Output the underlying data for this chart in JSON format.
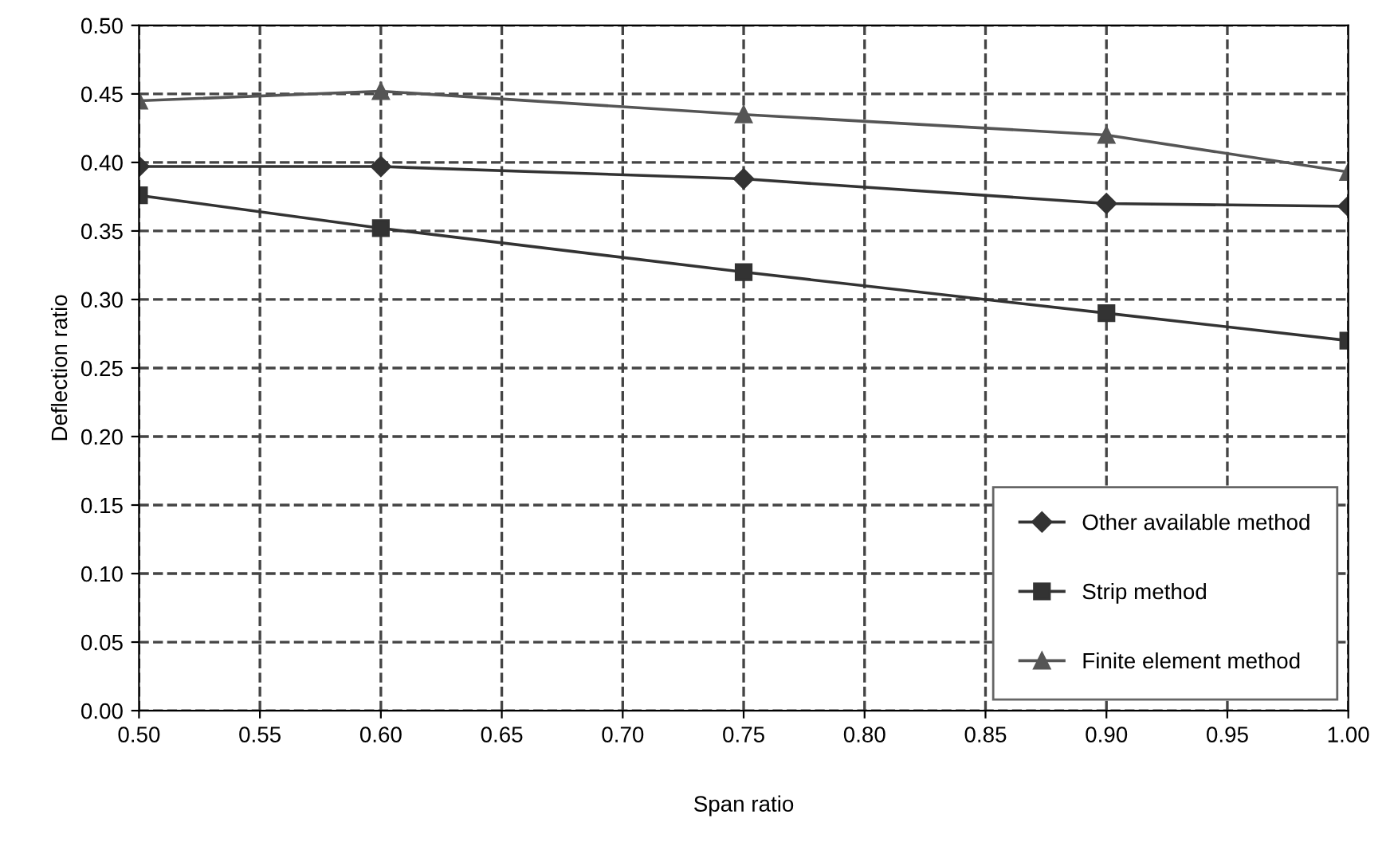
{
  "chart_data": {
    "type": "line",
    "xlabel": "Span ratio",
    "ylabel": "Deflection ratio",
    "x": [
      0.5,
      0.6,
      0.75,
      0.9,
      1.0
    ],
    "series": [
      {
        "name": "Other available method",
        "color": "#333333",
        "marker": "diamond",
        "values": [
          0.397,
          0.397,
          0.388,
          0.37,
          0.368
        ]
      },
      {
        "name": "Strip method",
        "color": "#333333",
        "marker": "square",
        "values": [
          0.376,
          0.352,
          0.32,
          0.29,
          0.27
        ]
      },
      {
        "name": "Finite element method",
        "color": "#555555",
        "marker": "triangle",
        "values": [
          0.445,
          0.452,
          0.435,
          0.42,
          0.393
        ]
      }
    ],
    "xlim": [
      0.5,
      1.0
    ],
    "xticks": [
      {
        "value": 0.5,
        "label": "0.50"
      },
      {
        "value": 0.55,
        "label": "0.55"
      },
      {
        "value": 0.6,
        "label": "0.60"
      },
      {
        "value": 0.65,
        "label": "0.65"
      },
      {
        "value": 0.7,
        "label": "0.70"
      },
      {
        "value": 0.75,
        "label": "0.75"
      },
      {
        "value": 0.8,
        "label": "0.80"
      },
      {
        "value": 0.85,
        "label": "0.85"
      },
      {
        "value": 0.9,
        "label": "0.90"
      },
      {
        "value": 0.95,
        "label": "0.95"
      },
      {
        "value": 1.0,
        "label": "1.00"
      }
    ],
    "ylim": [
      0,
      0.5
    ],
    "yticks": [
      {
        "value": 0,
        "label": "0.00"
      },
      {
        "value": 0.05,
        "label": "0.05"
      },
      {
        "value": 0.1,
        "label": "0.10"
      },
      {
        "value": 0.15,
        "label": "0.15"
      },
      {
        "value": 0.2,
        "label": "0.20"
      },
      {
        "value": 0.25,
        "label": "0.25"
      },
      {
        "value": 0.3,
        "label": "0.30"
      },
      {
        "value": 0.35,
        "label": "0.35"
      },
      {
        "value": 0.4,
        "label": "0.40"
      },
      {
        "value": 0.45,
        "label": "0.45"
      },
      {
        "value": 0.5,
        "label": "0.50"
      }
    ],
    "grid": true,
    "legend": "bottom right",
    "line_style": "solid"
  }
}
